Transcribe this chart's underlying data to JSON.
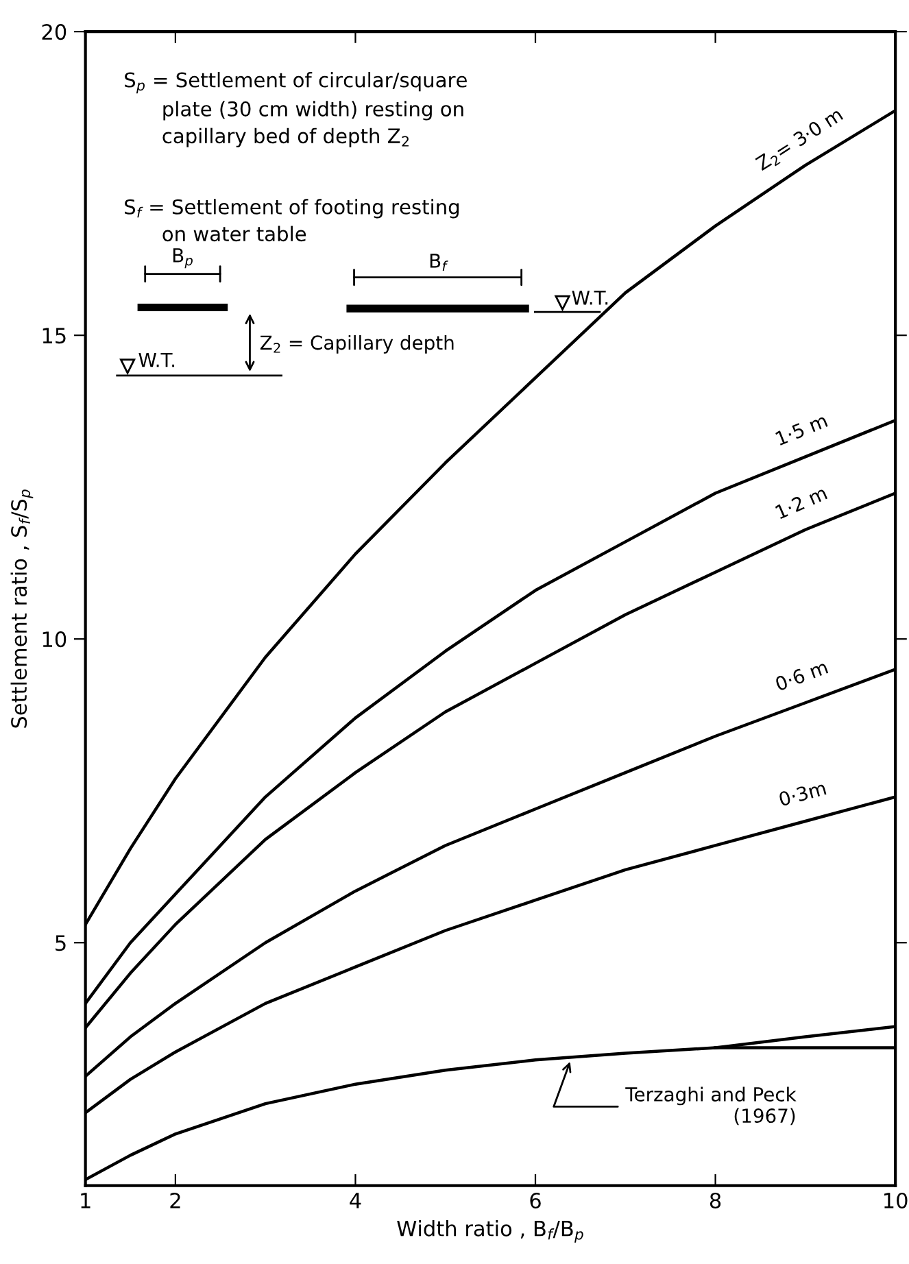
{
  "chart_data": {
    "type": "line",
    "xlabel": "Width ratio , B$_{f}$/B$_{p}$",
    "ylabel": "Settlement ratio , S$_{f}$/S$_{p}$",
    "x": [
      1,
      1.5,
      2,
      3,
      4,
      5,
      6,
      7,
      8,
      9,
      10
    ],
    "xlim": [
      1,
      10
    ],
    "xticks": [
      1,
      2,
      4,
      6,
      8,
      10
    ],
    "ylim": [
      1,
      20
    ],
    "yticks": [
      5,
      10,
      15,
      20
    ],
    "grid": false,
    "legend": false,
    "marker": "none",
    "line_style": "solid",
    "series": [
      {
        "name": "Z$_{2}$= 3·0 m",
        "color": "#000000",
        "values": [
          5.3,
          6.55,
          7.7,
          9.7,
          11.4,
          12.9,
          14.3,
          15.7,
          16.8,
          17.8,
          18.7
        ]
      },
      {
        "name": "1·5 m",
        "color": "#000000",
        "values": [
          4.0,
          5.0,
          5.8,
          7.4,
          8.7,
          9.8,
          10.8,
          11.6,
          12.4,
          13.0,
          13.6
        ]
      },
      {
        "name": "1·2 m",
        "color": "#000000",
        "values": [
          3.6,
          4.5,
          5.3,
          6.7,
          7.8,
          8.8,
          9.6,
          10.4,
          11.1,
          11.8,
          12.4
        ]
      },
      {
        "name": "0·6 m",
        "color": "#000000",
        "values": [
          2.8,
          3.45,
          4.0,
          5.0,
          5.85,
          6.6,
          7.2,
          7.8,
          8.4,
          8.95,
          9.5
        ]
      },
      {
        "name": "0·3m",
        "color": "#000000",
        "values": [
          2.2,
          2.75,
          3.2,
          4.0,
          4.6,
          5.2,
          5.7,
          6.2,
          6.6,
          7.0,
          7.4
        ]
      },
      {
        "color": "#000000",
        "values": [
          1.1,
          1.5,
          1.85,
          2.35,
          2.67,
          2.9,
          3.07,
          3.18,
          3.27,
          3.27,
          3.27
        ]
      },
      {
        "color": "#000000",
        "x": [
          8,
          9,
          10
        ],
        "values": [
          3.27,
          3.45,
          3.62
        ]
      }
    ],
    "annotations": [
      "S$_{p}$ = Settlement of circular/square\n      plate (30 cm width) resting on\n      capillary bed of depth Z$_{2}$",
      "S$_{f}$ = Settlement of footing resting\n      on water table",
      "B$_{p}$",
      "B$_{f}$",
      "W.T.",
      "W.T.",
      "Z$_{2}$ = Capillary depth",
      {
        "text": "Terzaghi and Peck\n(1967)",
        "x": 6.4,
        "y": 3.1
      }
    ]
  }
}
